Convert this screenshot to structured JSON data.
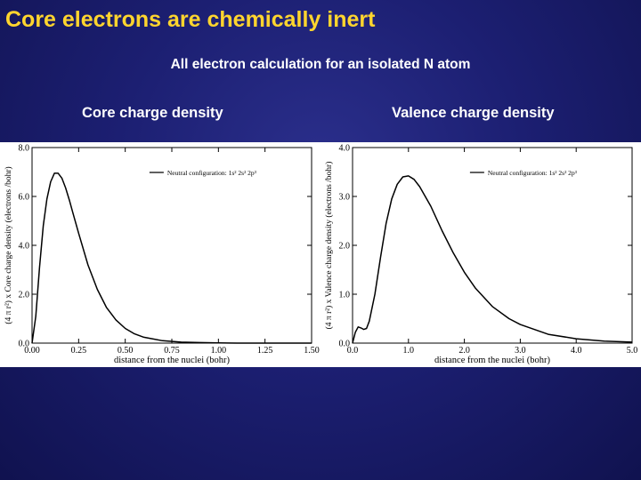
{
  "slide": {
    "title": "Core electrons are chemically inert",
    "subtitle": "All electron calculation for an isolated N atom"
  },
  "panels": {
    "left_caption": "Core charge density",
    "right_caption": "Valence charge density"
  },
  "chart_data": [
    {
      "type": "line",
      "xlabel": "distance from the nuclei (bohr)",
      "ylabel": "(4 π r²) x Core charge density (electrons /bohr)",
      "xlim": [
        0,
        1.5
      ],
      "ylim": [
        0,
        8
      ],
      "xticks": [
        "0.00",
        "0.25",
        "0.50",
        "0.75",
        "1.00",
        "1.25",
        "1.50"
      ],
      "xtick_values": [
        0,
        0.25,
        0.5,
        0.75,
        1.0,
        1.25,
        1.5
      ],
      "yticks": [
        "0.0",
        "2.0",
        "4.0",
        "6.0",
        "8.0"
      ],
      "ytick_values": [
        0,
        2,
        4,
        6,
        8
      ],
      "legend": "Neutral configuration: 1s² 2s² 2p³",
      "legend_position": "top-right",
      "grid": false,
      "series": [
        {
          "x": [
            0,
            0.02,
            0.04,
            0.06,
            0.08,
            0.1,
            0.12,
            0.14,
            0.16,
            0.18,
            0.2,
            0.22,
            0.25,
            0.3,
            0.35,
            0.4,
            0.45,
            0.5,
            0.55,
            0.6,
            0.7,
            0.8,
            0.9,
            1.0,
            1.1,
            1.2,
            1.3,
            1.4,
            1.5
          ],
          "y": [
            0,
            1.1,
            3.1,
            4.8,
            5.9,
            6.6,
            6.95,
            6.95,
            6.75,
            6.35,
            5.85,
            5.3,
            4.5,
            3.2,
            2.2,
            1.45,
            0.95,
            0.6,
            0.38,
            0.24,
            0.1,
            0.04,
            0.02,
            0.01,
            0,
            0,
            0,
            0,
            0
          ]
        }
      ]
    },
    {
      "type": "line",
      "xlabel": "distance from the nuclei (bohr)",
      "ylabel": "(4 π r²) x Valence charge density (electrons /bohr)",
      "xlim": [
        0,
        5
      ],
      "ylim": [
        0,
        4
      ],
      "xticks": [
        "0.0",
        "1.0",
        "2.0",
        "3.0",
        "4.0",
        "5.0"
      ],
      "xtick_values": [
        0,
        1,
        2,
        3,
        4,
        5
      ],
      "yticks": [
        "0.0",
        "1.0",
        "2.0",
        "3.0",
        "4.0"
      ],
      "ytick_values": [
        0,
        1,
        2,
        3,
        4
      ],
      "legend": "Neutral configuration: 1s² 2s² 2p³",
      "legend_position": "top-right",
      "grid": false,
      "series": [
        {
          "x": [
            0,
            0.05,
            0.1,
            0.15,
            0.2,
            0.25,
            0.3,
            0.4,
            0.5,
            0.6,
            0.7,
            0.8,
            0.9,
            1.0,
            1.1,
            1.2,
            1.4,
            1.6,
            1.8,
            2.0,
            2.2,
            2.5,
            2.8,
            3.0,
            3.5,
            4.0,
            4.5,
            5.0
          ],
          "y": [
            0,
            0.22,
            0.33,
            0.31,
            0.28,
            0.3,
            0.45,
            1.0,
            1.75,
            2.45,
            2.95,
            3.25,
            3.4,
            3.42,
            3.35,
            3.2,
            2.8,
            2.3,
            1.85,
            1.45,
            1.12,
            0.75,
            0.5,
            0.38,
            0.18,
            0.09,
            0.04,
            0.02
          ]
        }
      ]
    }
  ]
}
